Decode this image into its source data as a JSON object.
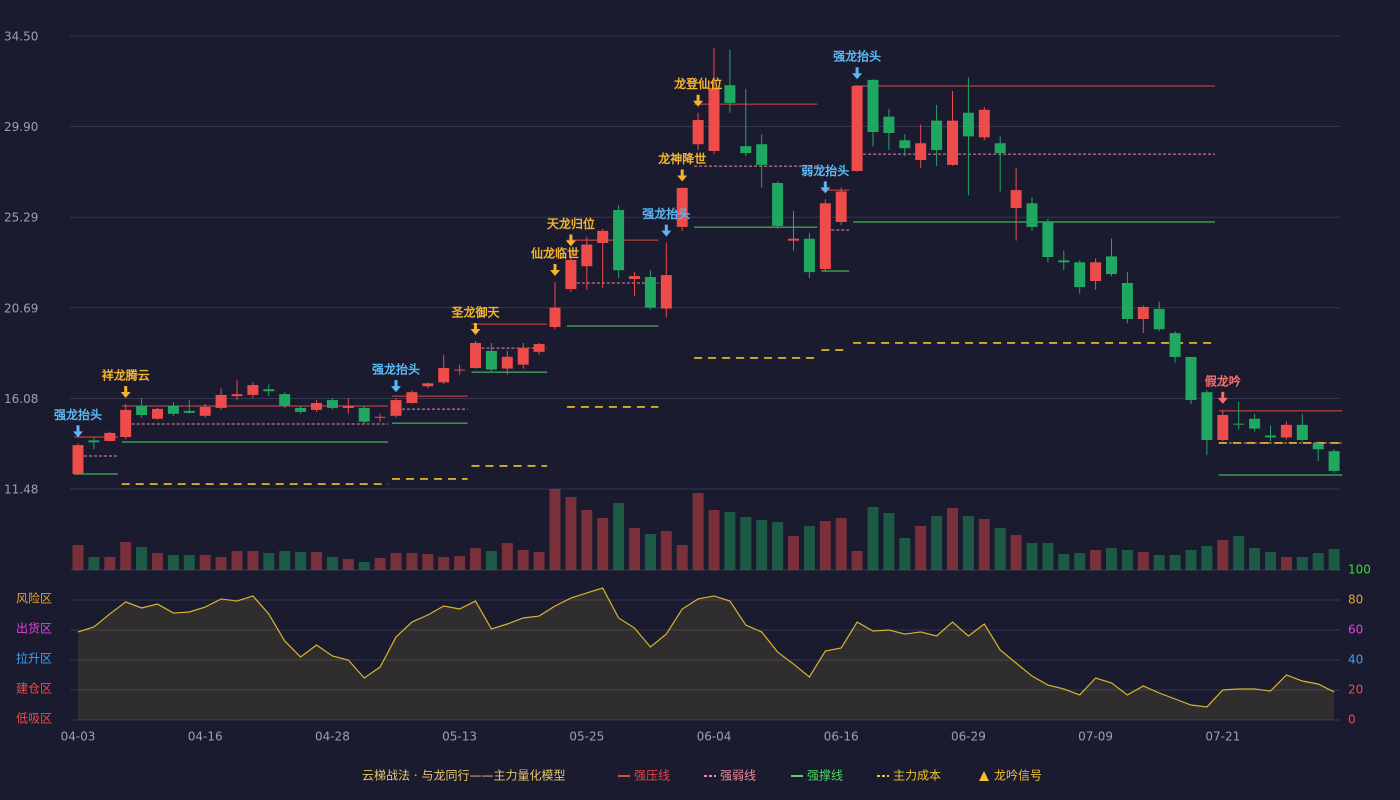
{
  "chart_data": {
    "type": "candlestick",
    "categories": [
      "04-03",
      null,
      null,
      null,
      null,
      null,
      null,
      null,
      "04-16",
      null,
      null,
      null,
      null,
      null,
      null,
      null,
      "04-28",
      null,
      null,
      null,
      null,
      null,
      null,
      null,
      "05-13",
      null,
      null,
      null,
      null,
      null,
      null,
      null,
      "05-25",
      null,
      null,
      null,
      null,
      null,
      null,
      null,
      "06-04",
      null,
      null,
      null,
      null,
      null,
      null,
      null,
      "06-16",
      null,
      null,
      null,
      null,
      null,
      null,
      null,
      "06-29",
      null,
      null,
      null,
      null,
      null,
      null,
      null,
      "07-09",
      null,
      null,
      null,
      null,
      null,
      null,
      null,
      "07-21",
      null,
      null,
      null,
      null,
      null,
      null,
      null
    ],
    "open": [
      12.24,
      13.95,
      13.92,
      14.12,
      15.7,
      15.05,
      15.7,
      15.45,
      15.2,
      15.6,
      16.2,
      16.26,
      16.55,
      16.3,
      15.6,
      15.5,
      16.0,
      15.6,
      15.6,
      15.1,
      15.2,
      15.85,
      16.7,
      16.9,
      17.5,
      17.63,
      18.5,
      17.6,
      17.8,
      18.45,
      19.71,
      21.64,
      22.8,
      23.98,
      25.66,
      22.15,
      22.25,
      20.65,
      24.8,
      29.0,
      28.66,
      32.0,
      28.9,
      29.0,
      27.03,
      24.1,
      24.2,
      22.66,
      25.05,
      27.64,
      32.27,
      30.4,
      29.2,
      28.2,
      30.2,
      27.95,
      30.6,
      29.35,
      29.05,
      25.76,
      26.0,
      25.05,
      23.1,
      23.0,
      22.05,
      23.3,
      21.95,
      20.12,
      20.63,
      19.4,
      18.19,
      16.4,
      13.97,
      14.8,
      15.05,
      14.2,
      14.1,
      14.74,
      13.8,
      13.4
    ],
    "high": [
      13.8,
      14.1,
      14.4,
      15.8,
      16.1,
      15.6,
      15.9,
      16.0,
      15.8,
      16.6,
      17.0,
      16.9,
      16.8,
      16.4,
      15.7,
      16.0,
      16.1,
      16.1,
      15.7,
      15.3,
      16.1,
      16.5,
      16.9,
      18.3,
      17.8,
      19.0,
      18.9,
      18.5,
      18.9,
      18.9,
      22.0,
      23.5,
      24.3,
      24.7,
      25.9,
      22.5,
      22.6,
      24.0,
      26.8,
      30.6,
      33.9,
      33.8,
      31.8,
      29.5,
      27.1,
      25.6,
      24.5,
      26.2,
      26.8,
      32.0,
      32.3,
      30.8,
      29.5,
      30.0,
      31.0,
      31.7,
      32.4,
      30.9,
      29.4,
      27.8,
      26.3,
      25.2,
      23.6,
      23.1,
      23.2,
      24.2,
      22.5,
      20.8,
      21.0,
      19.5,
      18.2,
      16.5,
      15.5,
      15.9,
      15.3,
      14.7,
      14.9,
      15.3,
      13.9,
      13.5
    ],
    "low": [
      12.2,
      13.5,
      13.9,
      14.0,
      15.1,
      15.0,
      15.2,
      15.3,
      15.1,
      15.5,
      16.0,
      16.1,
      16.2,
      15.6,
      15.3,
      15.4,
      15.5,
      15.3,
      14.8,
      14.9,
      15.1,
      15.8,
      16.6,
      16.8,
      17.3,
      17.6,
      17.4,
      17.3,
      17.6,
      18.3,
      19.6,
      21.5,
      21.6,
      21.7,
      22.2,
      21.3,
      20.6,
      20.2,
      24.6,
      28.7,
      28.5,
      30.6,
      28.4,
      26.8,
      24.7,
      23.6,
      22.2,
      22.5,
      24.9,
      27.6,
      28.9,
      28.7,
      28.4,
      27.8,
      27.9,
      27.9,
      26.4,
      29.2,
      26.6,
      24.1,
      24.6,
      23.0,
      22.6,
      21.4,
      21.6,
      22.3,
      19.9,
      19.4,
      19.5,
      17.9,
      15.8,
      13.2,
      13.9,
      14.5,
      14.4,
      13.9,
      14.0,
      13.9,
      12.9,
      12.3
    ],
    "close": [
      13.71,
      13.85,
      14.33,
      15.5,
      15.24,
      15.55,
      15.3,
      15.35,
      15.65,
      16.26,
      16.3,
      16.76,
      16.45,
      15.7,
      15.4,
      15.85,
      15.6,
      15.7,
      14.9,
      15.15,
      16.0,
      16.4,
      16.85,
      17.63,
      17.55,
      18.9,
      17.55,
      18.2,
      18.65,
      18.85,
      20.7,
      23.12,
      23.9,
      24.6,
      22.6,
      22.3,
      20.7,
      22.35,
      26.78,
      30.23,
      31.86,
      31.1,
      28.55,
      27.95,
      24.85,
      24.2,
      22.5,
      26.0,
      26.6,
      31.96,
      29.62,
      29.57,
      28.8,
      29.05,
      28.7,
      30.2,
      29.4,
      30.75,
      28.55,
      26.67,
      24.8,
      23.27,
      23.0,
      21.74,
      23.0,
      22.4,
      20.12,
      20.73,
      19.6,
      18.19,
      16.0,
      13.97,
      15.24,
      14.78,
      14.55,
      14.1,
      14.74,
      13.97,
      13.5,
      12.4
    ],
    "volume": [
      25,
      13,
      13,
      28,
      23,
      17,
      15,
      15,
      15,
      13,
      19,
      19,
      17,
      19,
      18,
      18,
      13,
      11,
      8,
      12,
      17,
      17,
      16,
      13,
      14,
      22,
      19,
      27,
      20,
      18,
      81,
      73,
      60,
      52,
      67,
      42,
      36,
      39,
      25,
      77,
      60,
      58,
      53,
      50,
      48,
      34,
      44,
      49,
      52,
      19,
      63,
      57,
      32,
      44,
      54,
      62,
      54,
      51,
      42,
      35,
      27,
      27,
      16,
      17,
      20,
      22,
      20,
      18,
      15,
      15,
      20,
      24,
      30,
      34,
      22,
      18,
      13,
      13,
      17,
      21
    ],
    "up_color": "#ee4b4b",
    "down_color": "#20a862",
    "ylim": [
      11.48,
      34.5
    ],
    "yticks": [
      11.48,
      16.08,
      20.69,
      25.29,
      {
        "value": 29.9,
        "label": "29.90"
      },
      {
        "value": 34.5,
        "label": "34.50"
      }
    ],
    "grid": true,
    "levels": [
      {
        "name": "强压线",
        "color": "#e04848",
        "dashed": false,
        "segments": [
          {
            "start": 0,
            "end": 2,
            "value": 14.12
          },
          {
            "start": 3,
            "end": 19,
            "value": 15.7
          },
          {
            "start": 20,
            "end": 24,
            "value": 16.2
          },
          {
            "start": 25,
            "end": 29,
            "value": 19.86
          },
          {
            "start": 31,
            "end": 36,
            "value": 24.13
          },
          {
            "start": 39,
            "end": 46,
            "value": 31.04
          },
          {
            "start": 47,
            "end": 48,
            "value": 26.67
          },
          {
            "start": 49,
            "end": 71,
            "value": 31.96
          },
          {
            "start": 72,
            "end": 79,
            "value": 15.45
          }
        ]
      },
      {
        "name": "强弱线",
        "color": "#f08a9a",
        "dashed": true,
        "segments": [
          {
            "start": 0,
            "end": 2,
            "value": 13.16
          },
          {
            "start": 3,
            "end": 19,
            "value": 14.78
          },
          {
            "start": 20,
            "end": 24,
            "value": 15.54
          },
          {
            "start": 25,
            "end": 29,
            "value": 18.64
          },
          {
            "start": 31,
            "end": 36,
            "value": 21.95
          },
          {
            "start": 39,
            "end": 46,
            "value": 27.89
          },
          {
            "start": 47,
            "end": 48,
            "value": 24.64
          },
          {
            "start": 49,
            "end": 71,
            "value": 28.5
          },
          {
            "start": 72,
            "end": 79,
            "value": 13.82
          }
        ]
      },
      {
        "name": "强撑线",
        "color": "#4cd964",
        "dashed": false,
        "segments": [
          {
            "start": 0,
            "end": 2,
            "value": 12.24
          },
          {
            "start": 3,
            "end": 19,
            "value": 13.87
          },
          {
            "start": 20,
            "end": 24,
            "value": 14.83
          },
          {
            "start": 25,
            "end": 29,
            "value": 17.42
          },
          {
            "start": 31,
            "end": 36,
            "value": 19.76
          },
          {
            "start": 39,
            "end": 46,
            "value": 24.79
          },
          {
            "start": 47,
            "end": 48,
            "value": 22.56
          },
          {
            "start": 49,
            "end": 71,
            "value": 25.05
          },
          {
            "start": 72,
            "end": 79,
            "value": 12.19
          }
        ]
      },
      {
        "name": "主力成本",
        "color": "#f2c12e",
        "dashed": true,
        "segments": [
          {
            "start": 3,
            "end": 19,
            "value": 11.73
          },
          {
            "start": 20,
            "end": 24,
            "value": 11.99
          },
          {
            "start": 25,
            "end": 29,
            "value": 12.65
          },
          {
            "start": 31,
            "end": 36,
            "value": 15.65
          },
          {
            "start": 39,
            "end": 46,
            "value": 18.14
          },
          {
            "start": 47,
            "end": 48,
            "value": 18.54
          },
          {
            "start": 49,
            "end": 71,
            "value": 18.9
          },
          {
            "start": 72,
            "end": 79,
            "value": 13.82
          }
        ]
      }
    ],
    "signals": {
      "name": "龙吟信号",
      "color": "#f2c12e",
      "items": [
        {
          "index": 0,
          "label": "强龙抬头",
          "color": "#5ab8f5"
        },
        {
          "index": 3,
          "label": "祥龙腾云",
          "color": "#f2b430"
        },
        {
          "index": 20,
          "label": "强龙抬头",
          "color": "#5ab8f5"
        },
        {
          "index": 25,
          "label": "圣龙御天",
          "color": "#f2b430"
        },
        {
          "index": 30,
          "label": "仙龙临世",
          "color": "#f2b430"
        },
        {
          "index": 31,
          "label": "天龙归位",
          "color": "#f2b430"
        },
        {
          "index": 37,
          "label": "强龙抬头",
          "color": "#5ab8f5"
        },
        {
          "index": 38,
          "label": "龙神降世",
          "color": "#f2b430"
        },
        {
          "index": 39,
          "label": "龙登仙位",
          "color": "#f2b430"
        },
        {
          "index": 47,
          "label": "弱龙抬头",
          "color": "#5ab8f5"
        },
        {
          "index": 49,
          "label": "强龙抬头",
          "color": "#5ab8f5"
        },
        {
          "index": 72,
          "label": "假龙吟",
          "color": "#ff6b6b"
        }
      ]
    },
    "indicator": {
      "color": "#d9b42e",
      "values": [
        58.7,
        62,
        70.7,
        78.7,
        74.7,
        77.3,
        71.3,
        72,
        75.3,
        80.7,
        79.3,
        82.7,
        70.7,
        52.7,
        42,
        50,
        42.7,
        40,
        28,
        35.3,
        55.3,
        65.3,
        70,
        76,
        74,
        79.3,
        60.7,
        64,
        68,
        69.3,
        76,
        81.3,
        84.7,
        88,
        68,
        61.3,
        48.7,
        57.3,
        74,
        80.7,
        82.7,
        79.3,
        63.3,
        58.7,
        45.3,
        37.3,
        28.7,
        46,
        48,
        65.3,
        59.3,
        60,
        57.3,
        58.7,
        56,
        65.3,
        56,
        64,
        46.7,
        38,
        29.3,
        23.3,
        20.7,
        16.7,
        28,
        24.7,
        16.7,
        22.7,
        18,
        14,
        10,
        8.7,
        20,
        20.7,
        20.7,
        19.3,
        30,
        26,
        24,
        18.7
      ],
      "ylim": [
        0,
        100
      ],
      "yticks": [
        0,
        20,
        40,
        60,
        80,
        100
      ],
      "tick_colors": [
        "#ef4b4b",
        "#ef4b4b",
        "#3fa0f5",
        "#e040e0",
        "#e8a030",
        "#33dd33"
      ],
      "zones": [
        {
          "label": "风险区",
          "value": 80,
          "color": "#e8a030"
        },
        {
          "label": "出货区",
          "value": 60,
          "color": "#e040e0"
        },
        {
          "label": "拉升区",
          "value": 40,
          "color": "#3fa0f5"
        },
        {
          "label": "建仓区",
          "value": 20,
          "color": "#ef4b4b"
        },
        {
          "label": "低吸区",
          "value": 0,
          "color": "#ef4b4b"
        }
      ]
    },
    "legend_title": "云梯战法 · 与龙同行——主力量化模型"
  }
}
